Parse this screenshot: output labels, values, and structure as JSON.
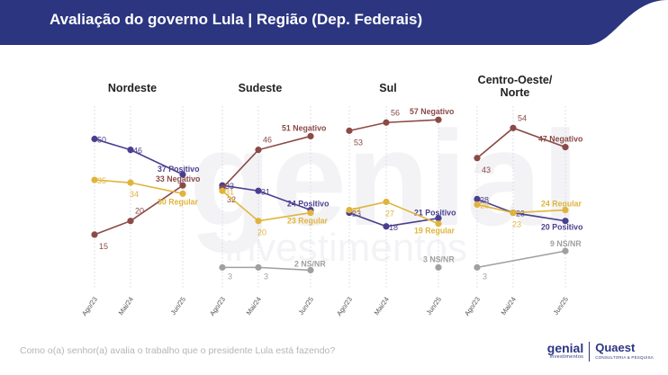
{
  "title": "Avaliação do governo Lula | Região (Dep. Federais)",
  "question": "Como o(a) senhor(a) avalia o trabalho que o presidente Lula está fazendo?",
  "logos": {
    "genial_main": "genial",
    "genial_sub": "investimentos",
    "quaest_main": "Quaest",
    "quaest_sub": "CONSULTORIA & PESQUISA"
  },
  "watermark": {
    "main": "genial",
    "sub": "investimentos"
  },
  "colors": {
    "header": "#2b3580",
    "positivo": "#4a3f8f",
    "negativo": "#8b4a47",
    "regular": "#e0b43c",
    "nsnr": "#a0a0a0",
    "gridline": "#cfd8e3"
  },
  "chart_data": {
    "type": "line",
    "categories": [
      "Ago/23",
      "Mai/24",
      "Jun/25"
    ],
    "series_names": [
      "Positivo",
      "Negativo",
      "Regular",
      "NS/NR"
    ],
    "panels": [
      {
        "title": "Nordeste",
        "series": [
          {
            "name": "Positivo",
            "values": [
              50,
              46,
              37
            ],
            "end_label": "37 Positivo",
            "value_labels": [
              "50",
              "46"
            ]
          },
          {
            "name": "Negativo",
            "values": [
              15,
              20,
              33
            ],
            "end_label": "33 Negativo",
            "value_labels": [
              "15",
              "20"
            ]
          },
          {
            "name": "Regular",
            "values": [
              35,
              34,
              30
            ],
            "end_label": "30 Regular",
            "value_labels": [
              "35",
              "34"
            ]
          }
        ]
      },
      {
        "title": "Sudeste",
        "series": [
          {
            "name": "Positivo",
            "values": [
              33,
              31,
              24
            ],
            "end_label": "24 Positivo",
            "value_labels": [
              "33",
              "31"
            ]
          },
          {
            "name": "Negativo",
            "values": [
              32,
              46,
              51
            ],
            "end_label": "51 Negativo",
            "value_labels": [
              "32",
              "46"
            ]
          },
          {
            "name": "Regular",
            "values": [
              31,
              20,
              23
            ],
            "end_label": "23 Regular",
            "value_labels": [
              "31",
              "20"
            ]
          },
          {
            "name": "NS/NR",
            "values": [
              3,
              3,
              2
            ],
            "end_label": "2 NS/NR",
            "value_labels": [
              "3",
              "3"
            ]
          }
        ]
      },
      {
        "title": "Sul",
        "series": [
          {
            "name": "Positivo",
            "values": [
              23,
              18,
              21
            ],
            "end_label": "21 Positivo",
            "value_labels": [
              "23",
              "18"
            ]
          },
          {
            "name": "Negativo",
            "values": [
              53,
              56,
              57
            ],
            "end_label": "57 Negativo",
            "value_labels": [
              "53",
              "56"
            ]
          },
          {
            "name": "Regular",
            "values": [
              24,
              27,
              19
            ],
            "end_label": "19 Regular",
            "value_labels": [
              "24",
              "27"
            ]
          },
          {
            "name": "NS/NR",
            "values": [
              null,
              null,
              3
            ],
            "end_label": "3 NS/NR",
            "value_labels": [
              "",
              ""
            ]
          }
        ]
      },
      {
        "title": "Centro-Oeste/ Norte",
        "title_lines": [
          "Centro-Oeste/",
          "Norte"
        ],
        "series": [
          {
            "name": "Positivo",
            "values": [
              28,
              23,
              20
            ],
            "end_label": "20 Positivo",
            "value_labels": [
              "28",
              "23"
            ]
          },
          {
            "name": "Negativo",
            "values": [
              43,
              54,
              47
            ],
            "end_label": "47 Negativo",
            "value_labels": [
              "43",
              "54"
            ]
          },
          {
            "name": "Regular",
            "values": [
              26,
              23,
              24
            ],
            "end_label": "24 Regular",
            "value_labels": [
              "26",
              "23"
            ]
          },
          {
            "name": "NS/NR",
            "values": [
              3,
              null,
              9
            ],
            "end_label": "9 NS/NR",
            "value_labels": [
              "3",
              ""
            ]
          }
        ]
      }
    ],
    "ylim": [
      0,
      60
    ]
  }
}
